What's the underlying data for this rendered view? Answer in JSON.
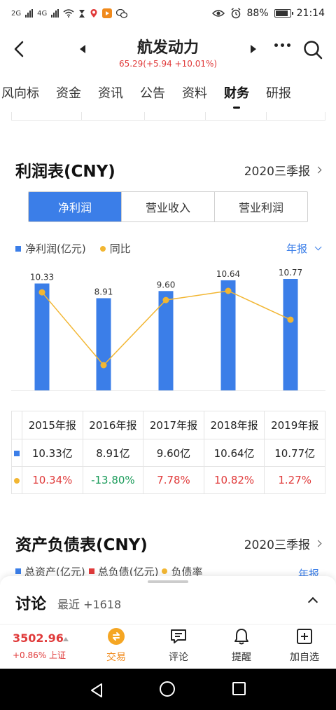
{
  "status_bar": {
    "network_1": "2G",
    "network_2": "4G",
    "battery": "88%",
    "time": "21:14"
  },
  "header": {
    "stock_name": "航发动力",
    "quote": "65.29(+5.94 +10.01%)"
  },
  "tabs": [
    {
      "label": "风向标"
    },
    {
      "label": "资金"
    },
    {
      "label": "资讯"
    },
    {
      "label": "公告"
    },
    {
      "label": "资料"
    },
    {
      "label": "财务",
      "active": true
    },
    {
      "label": "研报"
    }
  ],
  "income": {
    "title": "利润表(CNY)",
    "period_link": "2020三季报",
    "segments": [
      "净利润",
      "营业收入",
      "营业利润"
    ],
    "legend_bar": "净利润(亿元)",
    "legend_line": "同比",
    "period_selector": "年报"
  },
  "colors": {
    "bar": "#3b7ee8",
    "line": "#f2b632",
    "up": "#e03a3a",
    "down": "#1a9b5a"
  },
  "chart_data": {
    "type": "bar",
    "categories": [
      "2015年报",
      "2016年报",
      "2017年报",
      "2018年报",
      "2019年报"
    ],
    "series": [
      {
        "name": "净利润(亿元)",
        "type": "bar",
        "values": [
          10.33,
          8.91,
          9.6,
          10.64,
          10.77
        ],
        "data_labels": [
          "10.33",
          "8.91",
          "9.60",
          "10.64",
          "10.77"
        ]
      },
      {
        "name": "同比",
        "type": "line",
        "values": [
          10.34,
          -13.8,
          7.78,
          10.82,
          1.27
        ]
      }
    ],
    "legend": "top-left"
  },
  "table": {
    "headers": [
      "2015年报",
      "2016年报",
      "2017年报",
      "2018年报",
      "2019年报"
    ],
    "profit_row": [
      "10.33亿",
      "8.91亿",
      "9.60亿",
      "10.64亿",
      "10.77亿"
    ],
    "yoy_row": [
      "10.34%",
      "-13.80%",
      "7.78%",
      "10.82%",
      "1.27%"
    ]
  },
  "balance": {
    "title": "资产负债表(CNY)",
    "period_link": "2020三季报",
    "legend": [
      "总资产(亿元)",
      "总负债(亿元)",
      "负债率"
    ],
    "period_selector": "年报"
  },
  "discussion": {
    "title": "讨论",
    "subtitle": "最近 +1618"
  },
  "bottom_bar": {
    "index_value": "3502.96",
    "index_change": "+0.86% 上证",
    "items": [
      {
        "label": "交易",
        "icon": "trade-icon"
      },
      {
        "label": "评论",
        "icon": "comment-icon"
      },
      {
        "label": "提醒",
        "icon": "bell-icon"
      },
      {
        "label": "加自选",
        "icon": "add-watchlist-icon"
      }
    ]
  }
}
